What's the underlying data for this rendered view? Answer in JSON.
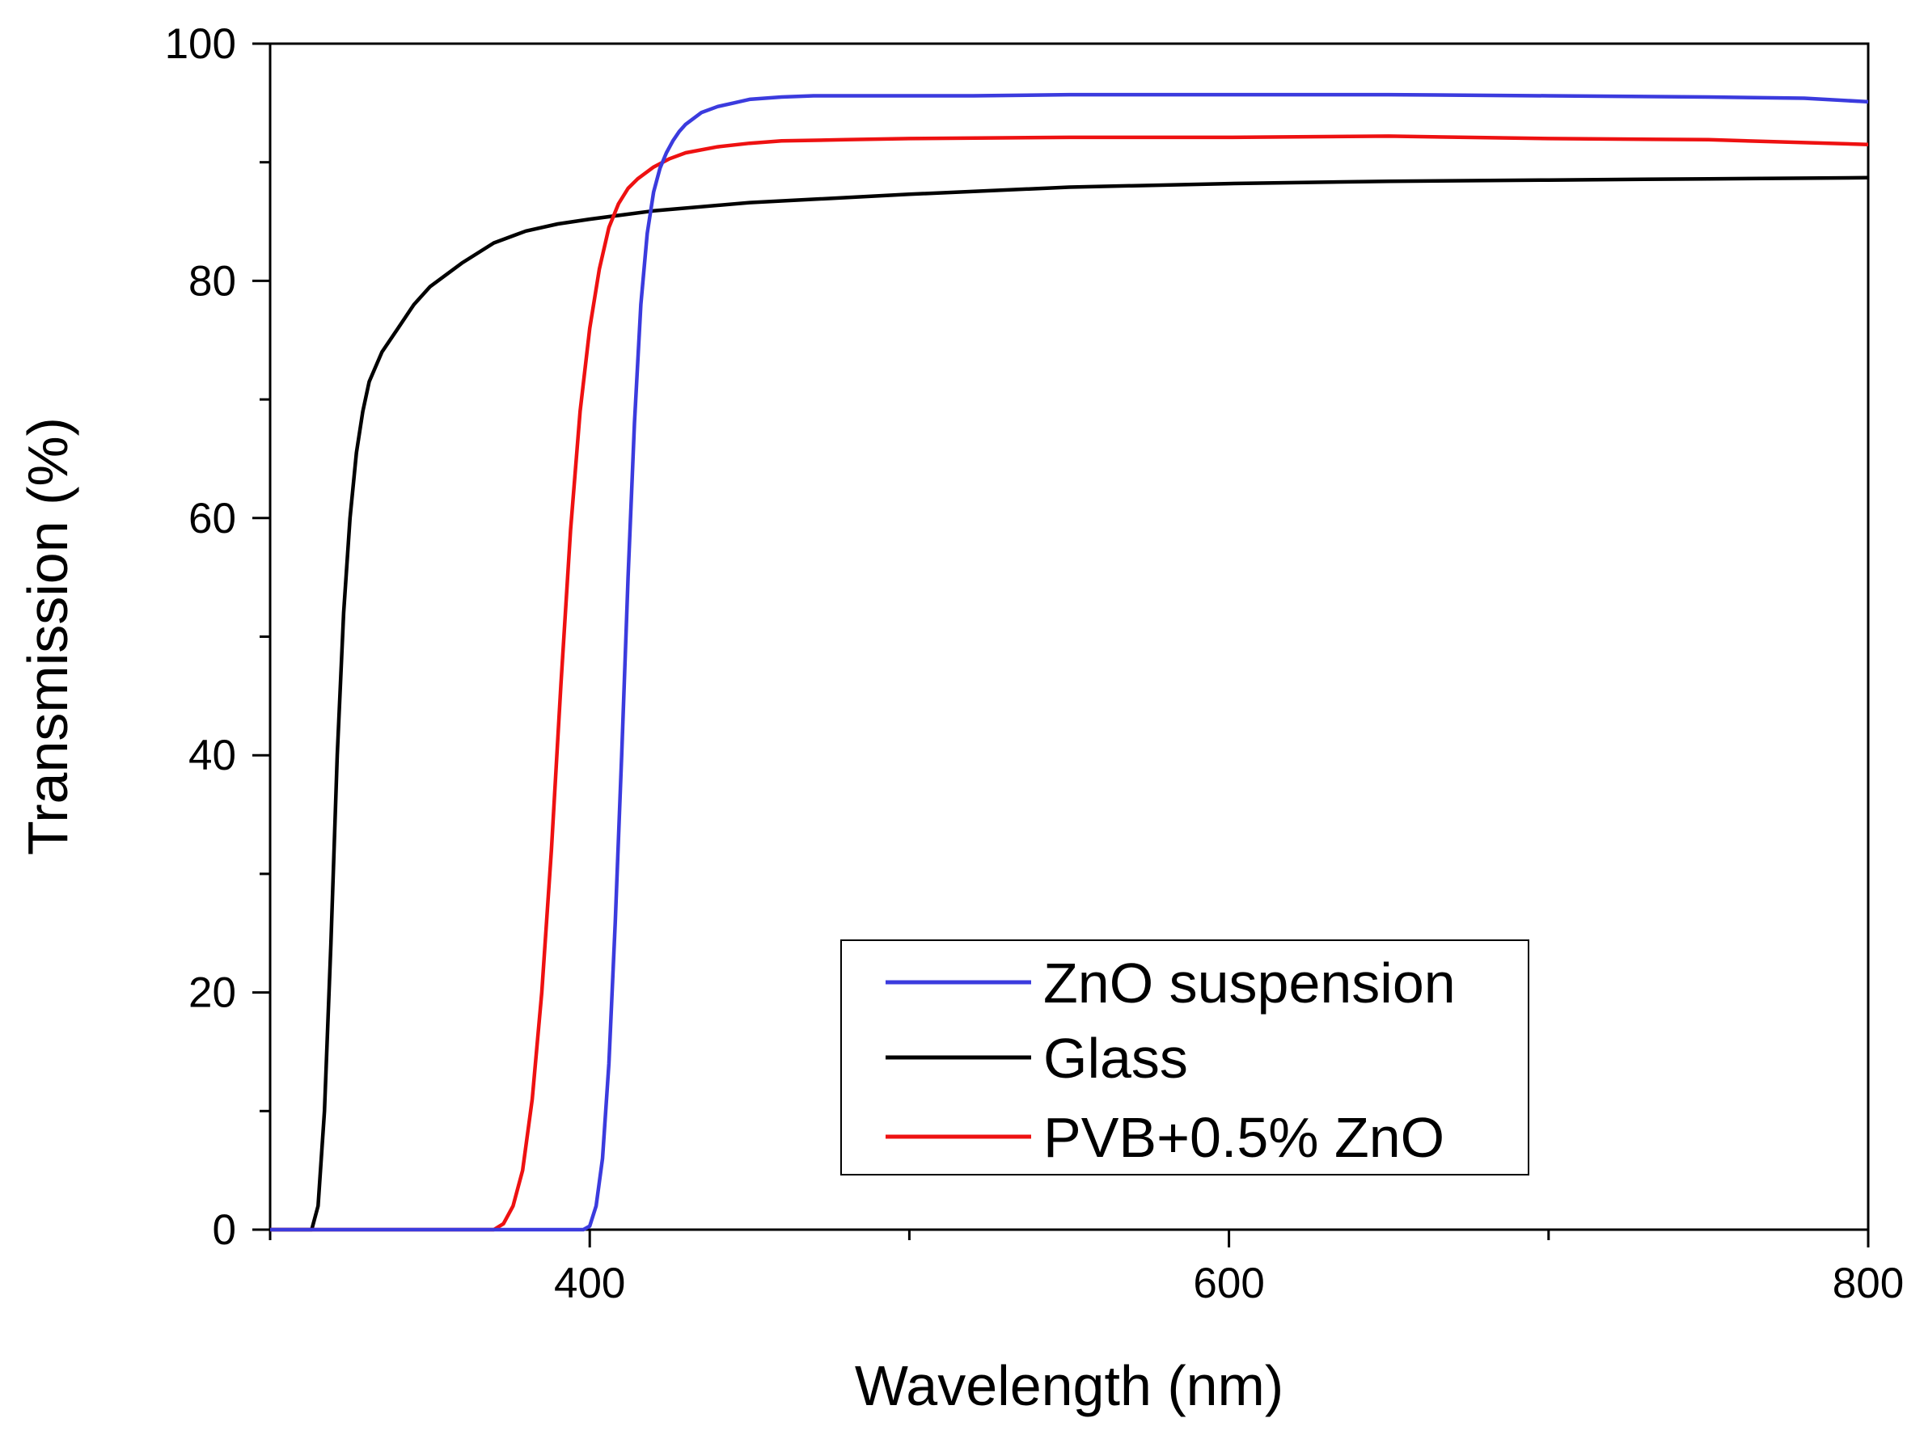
{
  "chart_data": {
    "type": "line",
    "title": "",
    "xlabel": "Wavelength (nm)",
    "ylabel": "Transmission (%)",
    "xlim": [
      300,
      800
    ],
    "ylim": [
      0,
      100
    ],
    "x_ticks": [
      400,
      600,
      800
    ],
    "x_minor_ticks": [
      300,
      500,
      700
    ],
    "y_ticks": [
      0,
      20,
      40,
      60,
      80,
      100
    ],
    "y_minor_ticks": [
      10,
      30,
      50,
      70,
      90
    ],
    "grid": false,
    "legend_position": "bottom-right",
    "series": [
      {
        "name": "ZnO suspension",
        "color": "#3b3bde",
        "x": [
          300,
          398,
          400,
          402,
          404,
          406,
          408,
          410,
          412,
          414,
          416,
          418,
          420,
          422,
          424,
          426,
          428,
          430,
          435,
          440,
          445,
          450,
          460,
          470,
          480,
          500,
          520,
          550,
          600,
          650,
          700,
          750,
          780,
          800
        ],
        "y": [
          0,
          0,
          0.3,
          2,
          6,
          14,
          26,
          40,
          55,
          68,
          78,
          84,
          87.5,
          89.5,
          90.8,
          91.8,
          92.6,
          93.2,
          94.2,
          94.7,
          95.0,
          95.3,
          95.5,
          95.6,
          95.6,
          95.6,
          95.6,
          95.7,
          95.7,
          95.7,
          95.6,
          95.5,
          95.4,
          95.1
        ]
      },
      {
        "name": "Glass",
        "color": "#000000",
        "x": [
          300,
          313,
          315,
          317,
          319,
          321,
          323,
          325,
          327,
          329,
          331,
          335,
          340,
          345,
          350,
          360,
          370,
          380,
          390,
          400,
          420,
          450,
          500,
          550,
          600,
          650,
          700,
          750,
          800
        ],
        "y": [
          0,
          0,
          2,
          10,
          24,
          40,
          52,
          60,
          65.5,
          69,
          71.5,
          74,
          76,
          78,
          79.5,
          81.5,
          83.2,
          84.2,
          84.8,
          85.2,
          85.9,
          86.6,
          87.3,
          87.9,
          88.2,
          88.4,
          88.5,
          88.6,
          88.7
        ]
      },
      {
        "name": "PVB+0.5% ZnO",
        "color": "#ee1111",
        "x": [
          300,
          370,
          373,
          376,
          379,
          382,
          385,
          388,
          391,
          394,
          397,
          400,
          403,
          406,
          409,
          412,
          415,
          420,
          425,
          430,
          440,
          450,
          460,
          480,
          500,
          550,
          600,
          650,
          700,
          750,
          800
        ],
        "y": [
          0,
          0,
          0.5,
          2,
          5,
          11,
          20,
          32,
          46,
          59,
          69,
          76,
          81,
          84.5,
          86.5,
          87.8,
          88.6,
          89.6,
          90.3,
          90.8,
          91.3,
          91.6,
          91.8,
          91.9,
          92.0,
          92.1,
          92.1,
          92.2,
          92.0,
          91.9,
          91.5
        ]
      }
    ]
  }
}
